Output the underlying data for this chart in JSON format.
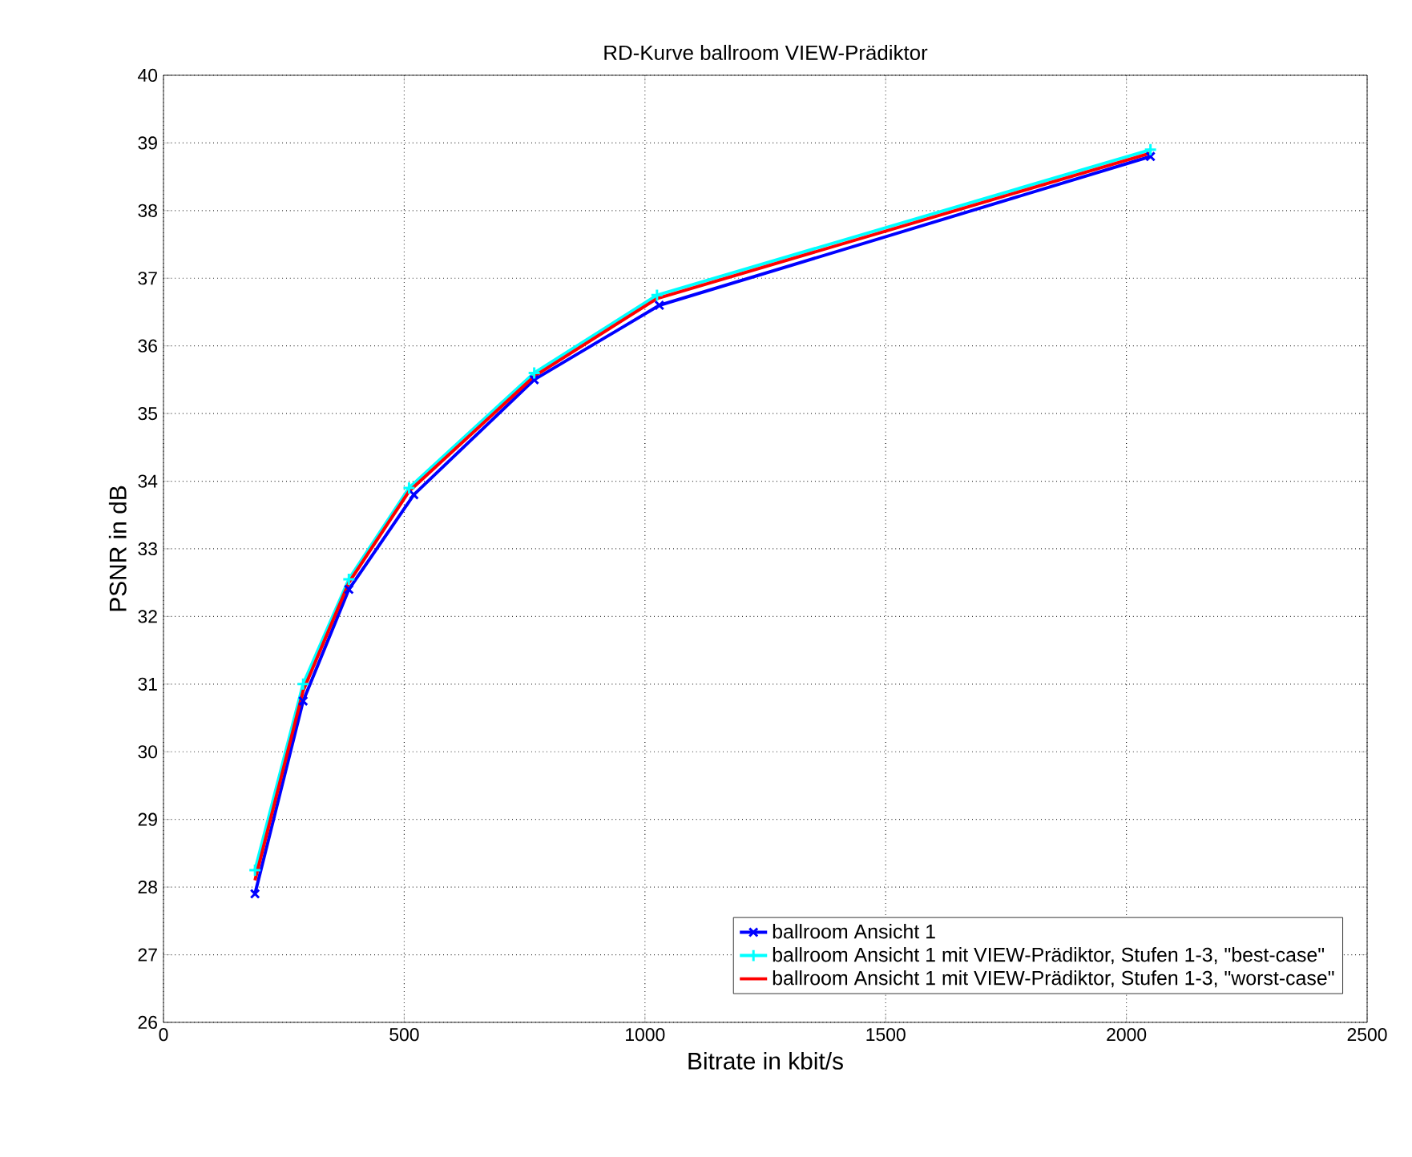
{
  "chart_data": {
    "type": "line",
    "title": "RD-Kurve ballroom VIEW-Prädiktor",
    "xlabel": "Bitrate in kbit/s",
    "ylabel": "PSNR in dB",
    "xlim": [
      0,
      2500
    ],
    "xticks": [
      0,
      500,
      1000,
      1500,
      2000,
      2500
    ],
    "ylim": [
      26,
      40
    ],
    "yticks": [
      26,
      27,
      28,
      29,
      30,
      31,
      32,
      33,
      34,
      35,
      36,
      37,
      38,
      39,
      40
    ],
    "grid": true,
    "legend": "bottom right",
    "series": [
      {
        "name": "ballroom Ansicht 1",
        "color": "#0000ff",
        "marker": "cross",
        "x": [
          190,
          290,
          385,
          520,
          770,
          1030,
          2050
        ],
        "values": [
          27.9,
          30.75,
          32.4,
          33.8,
          35.5,
          36.6,
          38.8
        ]
      },
      {
        "name": "ballroom Ansicht 1 mit VIEW-Prädiktor, Stufen 1-3, \"best-case\"",
        "color": "#00ffff",
        "marker": "plus",
        "x": [
          190,
          290,
          385,
          510,
          770,
          1025,
          2050
        ],
        "values": [
          28.25,
          31.0,
          32.55,
          33.9,
          35.6,
          36.75,
          38.9
        ]
      },
      {
        "name": "ballroom Ansicht 1 mit VIEW-Prädiktor, Stufen 1-3, \"worst-case\"",
        "color": "#ff0000",
        "marker": "none",
        "x": [
          190,
          290,
          385,
          510,
          770,
          1025,
          2050
        ],
        "values": [
          28.1,
          30.9,
          32.5,
          33.85,
          35.55,
          36.7,
          38.85
        ]
      }
    ]
  }
}
